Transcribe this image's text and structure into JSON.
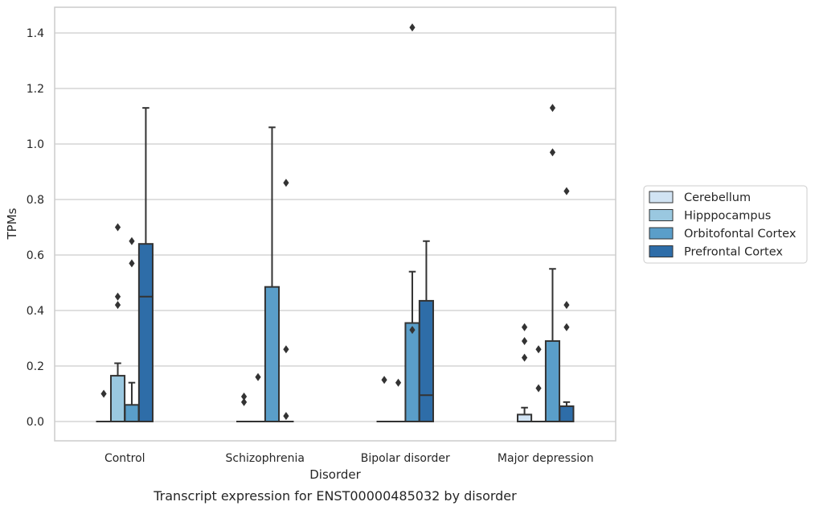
{
  "chart_data": {
    "type": "box",
    "title": "",
    "caption": "Transcript expression for ENST00000485032 by disorder",
    "xlabel": "Disorder",
    "ylabel": "TPMs",
    "ylim": [
      -0.07,
      1.49
    ],
    "yticks": [
      0.0,
      0.2,
      0.4,
      0.6,
      0.8,
      1.0,
      1.2,
      1.4
    ],
    "ytick_labels": [
      "0.0",
      "0.2",
      "0.4",
      "0.6",
      "0.8",
      "1.0",
      "1.2",
      "1.4"
    ],
    "grid": "horizontal",
    "legend_position": "right",
    "categories": [
      "Control",
      "Schizophrenia",
      "Bipolar disorder",
      "Major depression"
    ],
    "series": [
      {
        "name": "Cerebellum",
        "color": "#d1e3f3",
        "boxes": [
          {
            "q1": 0,
            "median": 0,
            "q3": 0,
            "whisker_low": 0,
            "whisker_high": 0,
            "outliers": [
              0.1
            ]
          },
          {
            "q1": 0,
            "median": 0,
            "q3": 0,
            "whisker_low": 0,
            "whisker_high": 0,
            "outliers": [
              0.07,
              0.09
            ]
          },
          {
            "q1": 0,
            "median": 0,
            "q3": 0,
            "whisker_low": 0,
            "whisker_high": 0,
            "outliers": [
              0.15
            ]
          },
          {
            "q1": 0,
            "median": 0,
            "q3": 0.025,
            "whisker_low": 0,
            "whisker_high": 0.05,
            "outliers": [
              0.23,
              0.29,
              0.34
            ]
          }
        ]
      },
      {
        "name": "Hipppocampus",
        "color": "#9ac8e0",
        "boxes": [
          {
            "q1": 0,
            "median": 0,
            "q3": 0.165,
            "whisker_low": 0,
            "whisker_high": 0.21,
            "outliers": [
              0.42,
              0.45,
              0.7
            ]
          },
          {
            "q1": 0,
            "median": 0,
            "q3": 0,
            "whisker_low": 0,
            "whisker_high": 0,
            "outliers": [
              0.16
            ]
          },
          {
            "q1": 0,
            "median": 0,
            "q3": 0,
            "whisker_low": 0,
            "whisker_high": 0,
            "outliers": [
              0.14
            ]
          },
          {
            "q1": 0,
            "median": 0,
            "q3": 0,
            "whisker_low": 0,
            "whisker_high": 0,
            "outliers": [
              0.12,
              0.26
            ]
          }
        ]
      },
      {
        "name": "Orbitofontal Cortex",
        "color": "#5a9ec9",
        "boxes": [
          {
            "q1": 0,
            "median": 0,
            "q3": 0.06,
            "whisker_low": 0,
            "whisker_high": 0.14,
            "outliers": [
              0.57,
              0.65
            ]
          },
          {
            "q1": 0,
            "median": 0,
            "q3": 0.485,
            "whisker_low": 0,
            "whisker_high": 1.06,
            "outliers": []
          },
          {
            "q1": 0,
            "median": 0,
            "q3": 0.355,
            "whisker_low": 0,
            "whisker_high": 0.54,
            "outliers": [
              0.33,
              1.42
            ]
          },
          {
            "q1": 0,
            "median": 0,
            "q3": 0.29,
            "whisker_low": 0,
            "whisker_high": 0.55,
            "outliers": [
              0.97,
              1.13
            ]
          }
        ]
      },
      {
        "name": "Prefrontal Cortex",
        "color": "#2e6da8",
        "boxes": [
          {
            "q1": 0,
            "median": 0.45,
            "q3": 0.64,
            "whisker_low": 0,
            "whisker_high": 1.13,
            "outliers": []
          },
          {
            "q1": 0,
            "median": 0,
            "q3": 0,
            "whisker_low": 0,
            "whisker_high": 0,
            "outliers": [
              0.02,
              0.26,
              0.86
            ]
          },
          {
            "q1": 0,
            "median": 0.095,
            "q3": 0.435,
            "whisker_low": 0,
            "whisker_high": 0.65,
            "outliers": []
          },
          {
            "q1": 0,
            "median": 0,
            "q3": 0.055,
            "whisker_low": 0,
            "whisker_high": 0.07,
            "outliers": [
              0.34,
              0.42,
              0.83
            ]
          }
        ]
      }
    ]
  }
}
